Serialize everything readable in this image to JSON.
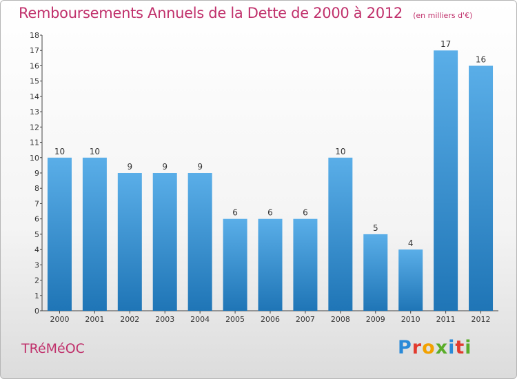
{
  "header": {
    "title": "Remboursements Annuels de la Dette de 2000 à 2012",
    "subtitle": "(en milliers d'€)"
  },
  "footer": {
    "commune": "TRéMéOC",
    "brand": "Proxiti",
    "brand_colors": [
      "#2a8ad8",
      "#e23b2f",
      "#f2a100",
      "#5aad2a",
      "#2a8ad8",
      "#e23b2f",
      "#5aad2a"
    ]
  },
  "colors": {
    "title": "#c0306b",
    "bar_top": "#5aaee8",
    "bar_bottom": "#1f75b6"
  },
  "chart_data": {
    "type": "bar",
    "title": "Remboursements Annuels de la Dette de 2000 à 2012",
    "subtitle": "(en milliers d'€)",
    "categories": [
      "2000",
      "2001",
      "2002",
      "2003",
      "2004",
      "2005",
      "2006",
      "2007",
      "2008",
      "2009",
      "2010",
      "2011",
      "2012"
    ],
    "values": [
      10,
      10,
      9,
      9,
      9,
      6,
      6,
      6,
      10,
      5,
      4,
      17,
      16
    ],
    "data_labels": [
      "10",
      "10",
      "9",
      "9",
      "9",
      "6",
      "6",
      "6",
      "10",
      "5",
      "4",
      "17",
      "16"
    ],
    "y_ticks": [
      "0",
      "1",
      "2",
      "3",
      "4",
      "5",
      "6",
      "7",
      "8",
      "9",
      "10",
      "11",
      "12",
      "13",
      "14",
      "15",
      "16",
      "17",
      "18"
    ],
    "xlabel": "",
    "ylabel": "",
    "ylim": [
      0,
      18
    ],
    "grid": false,
    "legend": "none"
  }
}
